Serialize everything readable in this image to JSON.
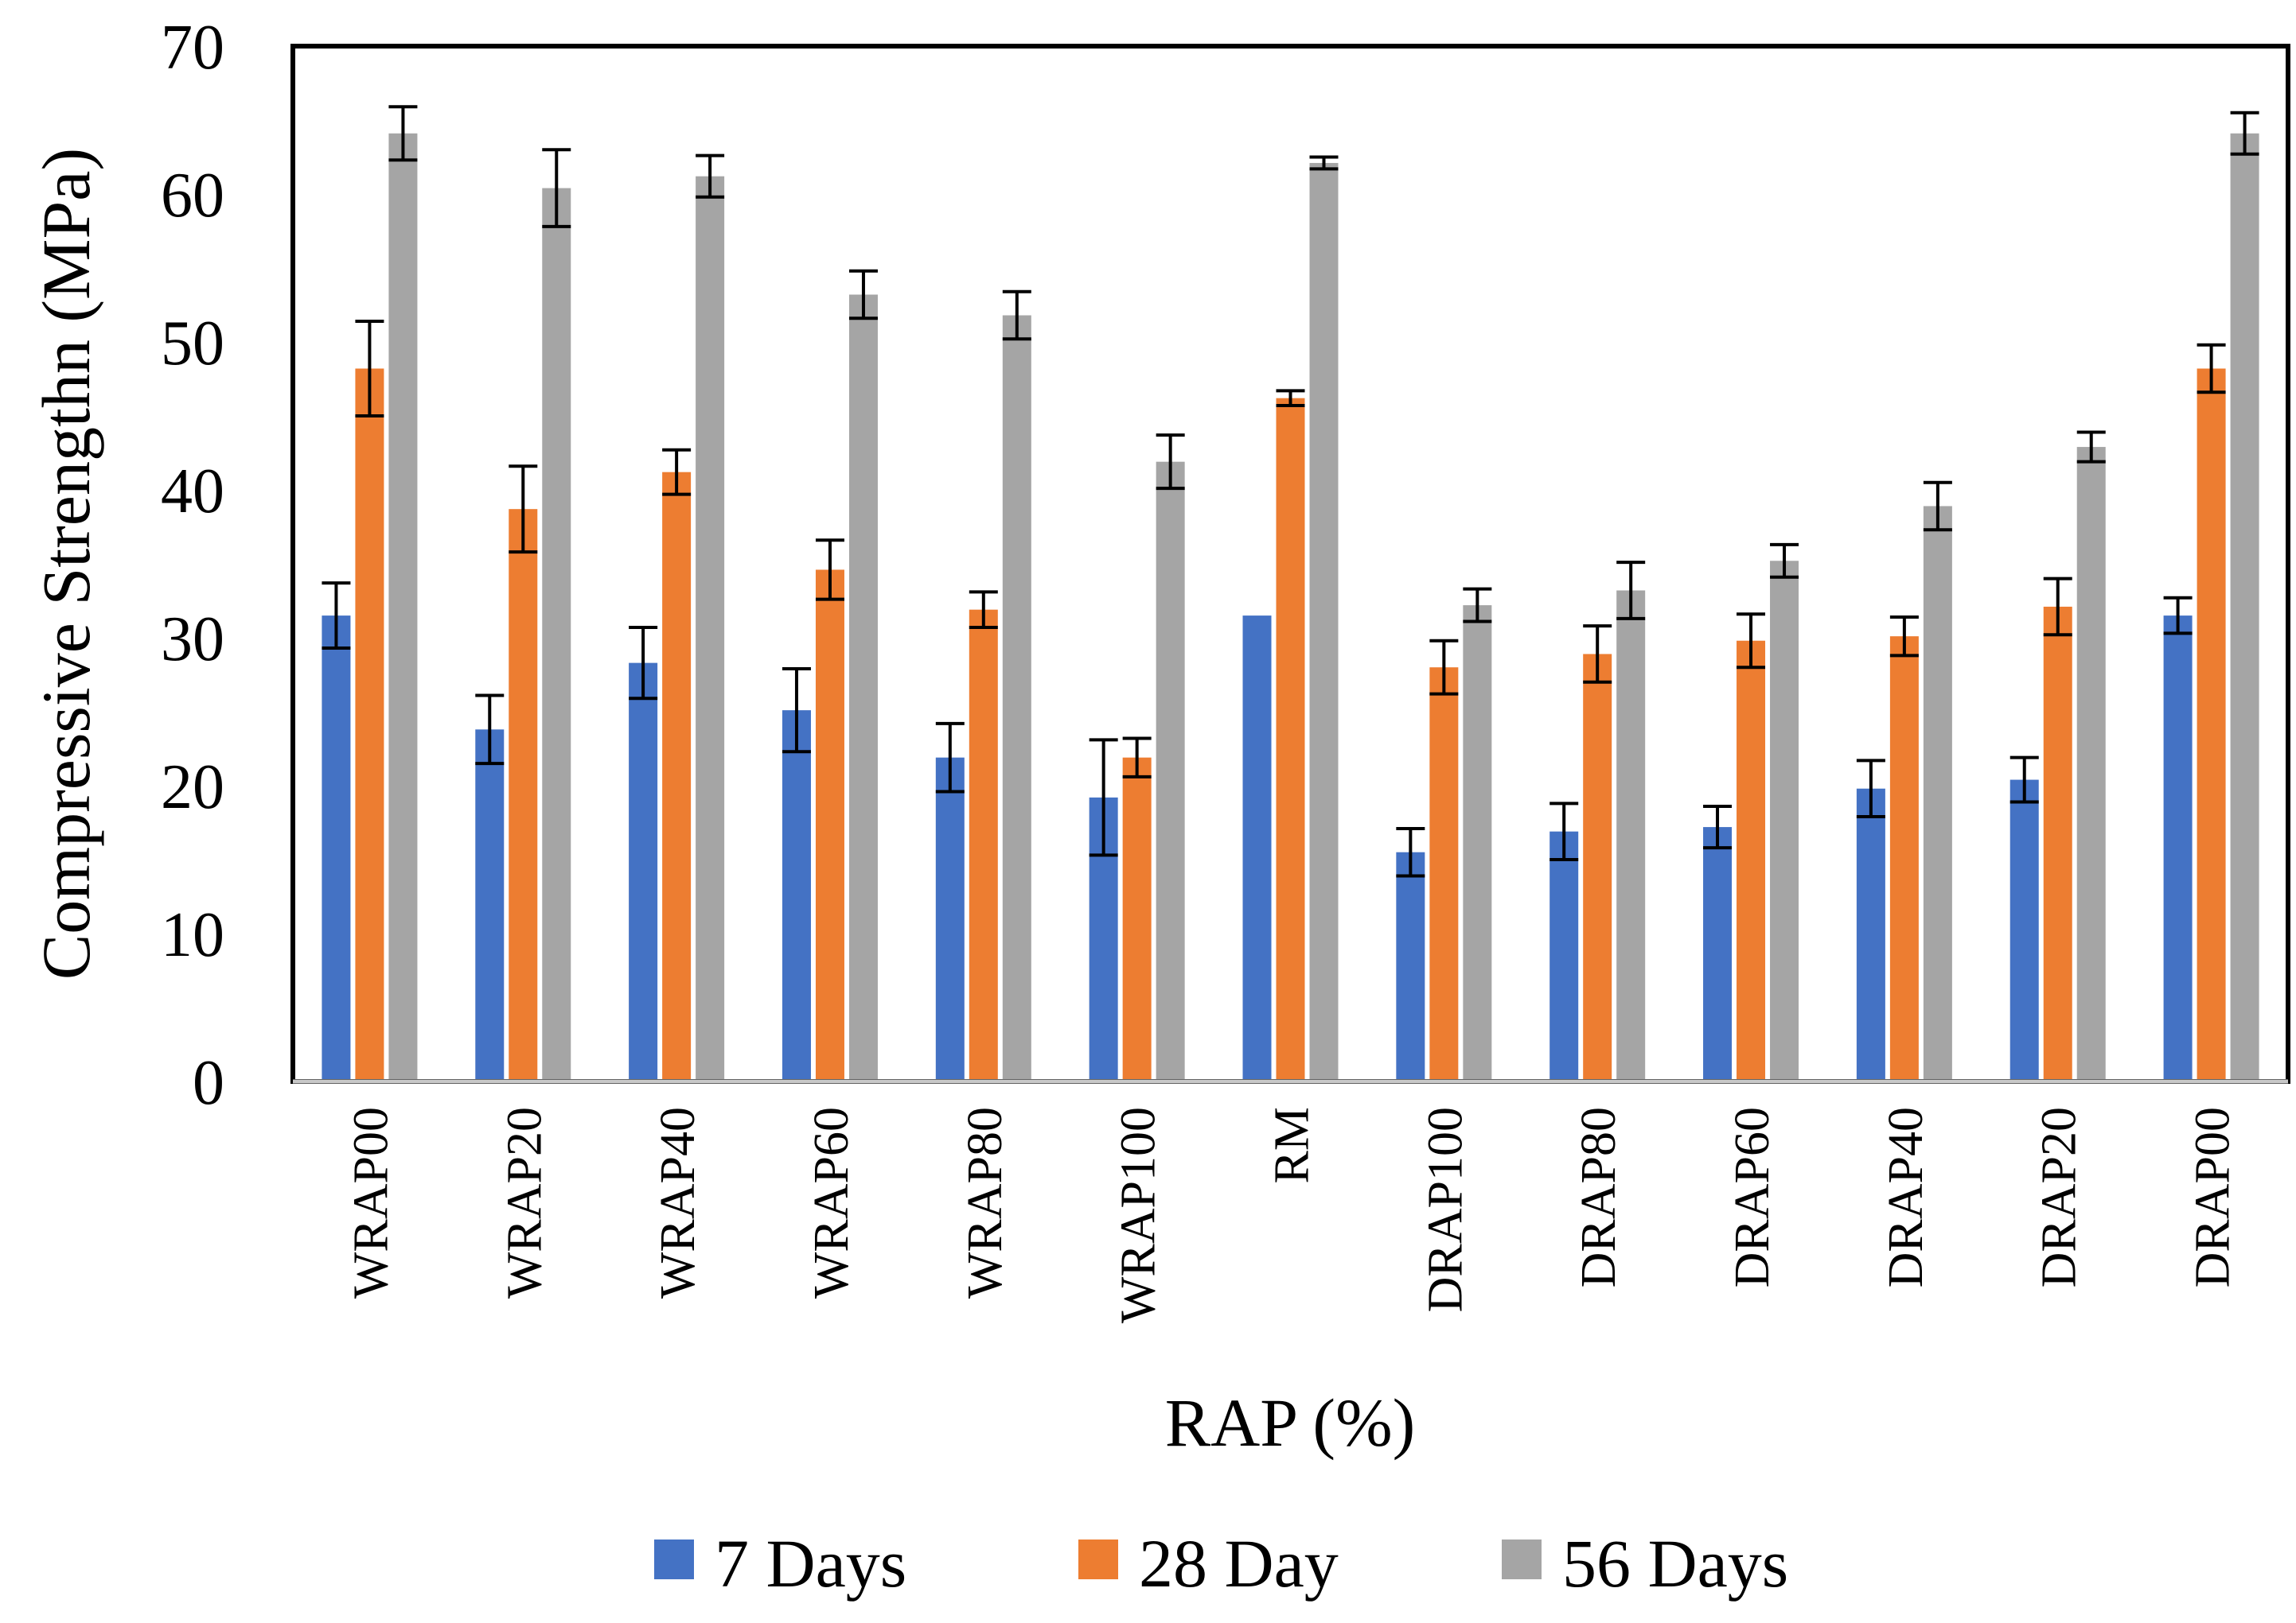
{
  "chart_data": {
    "type": "bar",
    "title": "",
    "xlabel": "RAP (%)",
    "ylabel": "Compressive Strengthn (MPa)",
    "ylim": [
      0,
      70
    ],
    "yticks": [
      "0",
      "10",
      "20",
      "30",
      "40",
      "50",
      "60",
      "70"
    ],
    "grid": false,
    "legend_position": "bottom",
    "categories": [
      "WRAP00",
      "WRAP20",
      "WRAP40",
      "WRAP60",
      "WRAP80",
      "WRAP100",
      "RM",
      "DRAP100",
      "DRAP80",
      "DRAP60",
      "DRAP40",
      "DRAP20",
      "DRAP00"
    ],
    "series": [
      {
        "name": "7 Days",
        "color": "#4472C4",
        "values": [
          31.5,
          23.8,
          28.3,
          25.1,
          21.9,
          19.2,
          31.5,
          15.5,
          16.9,
          17.2,
          19.8,
          20.4,
          31.5
        ],
        "errors": [
          2.2,
          2.3,
          2.4,
          2.8,
          2.3,
          3.9,
          0.0,
          1.6,
          1.9,
          1.4,
          1.9,
          1.5,
          1.2
        ]
      },
      {
        "name": "28 Day",
        "color": "#ED7D31",
        "values": [
          48.2,
          38.7,
          41.2,
          34.6,
          31.9,
          21.9,
          46.2,
          28.0,
          28.9,
          29.8,
          30.1,
          32.1,
          48.2
        ],
        "errors": [
          3.2,
          2.9,
          1.5,
          2.0,
          1.2,
          1.3,
          0.5,
          1.8,
          1.9,
          1.8,
          1.3,
          1.9,
          1.6
        ]
      },
      {
        "name": "56 Days",
        "color": "#A5A5A5",
        "values": [
          64.1,
          60.4,
          61.2,
          53.2,
          51.8,
          41.9,
          62.1,
          32.2,
          33.2,
          35.2,
          38.9,
          42.9,
          64.1
        ],
        "errors": [
          1.8,
          2.6,
          1.4,
          1.6,
          1.6,
          1.8,
          0.4,
          1.1,
          1.9,
          1.1,
          1.6,
          1.0,
          1.4
        ]
      }
    ]
  }
}
